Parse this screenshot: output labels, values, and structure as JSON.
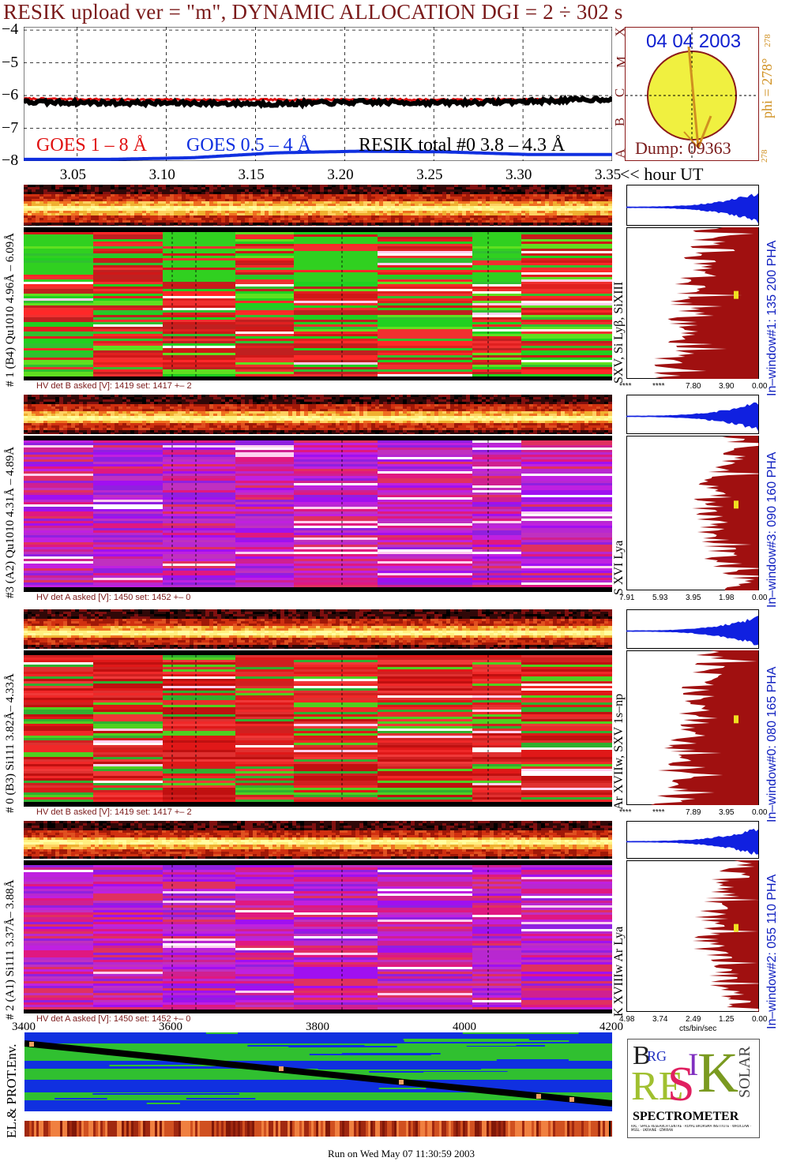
{
  "title": "RESIK upload ver = \"m\", DYNAMIC ALLOCATION  DGI =   2 ÷ 302 s",
  "colors": {
    "title": "#7a1a1a",
    "goes_long": "#e01010",
    "goes_short": "#1030e0",
    "resik_total": "#000000",
    "pha_blue": "#1020e0",
    "pha_red": "#a01010",
    "sun": "#f0f040",
    "sun_outline": "#8b1a1a",
    "date": "#1020d0",
    "phi": "#d09020",
    "window_label": "#1020c0"
  },
  "chart_data": [
    {
      "type": "line",
      "name": "lightcurves",
      "x": [
        3.02,
        3.05,
        3.1,
        3.15,
        3.2,
        3.25,
        3.3,
        3.35
      ],
      "xlabel": "<< hour UT",
      "xticks": [
        "3.05",
        "3.10",
        "3.15",
        "3.20",
        "3.25",
        "3.30",
        "3.35"
      ],
      "xlim": [
        3.02,
        3.35
      ],
      "ylim": [
        -8.0,
        -3.9
      ],
      "yticks": [
        "−4",
        "−5",
        "−6",
        "−7",
        "−8"
      ],
      "right_letters": [
        "A",
        "B",
        "C",
        "M",
        "X"
      ],
      "grid": true,
      "series": [
        {
          "name": "GOES 1 – 8 Å",
          "color": "#e01010",
          "values": [
            -6.1,
            -6.12,
            -6.13,
            -6.13,
            -6.12,
            -6.13,
            -6.12,
            -6.12
          ]
        },
        {
          "name": "GOES 0.5 – 4 Å",
          "color": "#1030e0",
          "values": [
            -7.95,
            -7.95,
            -7.9,
            -7.75,
            -7.7,
            -7.72,
            -7.8,
            -7.8
          ]
        },
        {
          "name": "RESIK total #0  3.8 – 4.3 Å",
          "color": "#000000",
          "values": [
            -6.2,
            -6.22,
            -6.23,
            -6.25,
            -6.2,
            -6.22,
            -6.18,
            -6.1
          ]
        }
      ]
    },
    {
      "type": "line",
      "name": "env-timeline",
      "xticks": [
        "3400",
        "3600",
        "3800",
        "4000",
        "4200"
      ],
      "xlim": [
        3400,
        4200
      ],
      "ylabel": "EL.& PROT.Env."
    }
  ],
  "sun_panel": {
    "date": "04 04 2003",
    "phi_label": "phi = 278°",
    "phi_small": "278",
    "phi_bottom": "278",
    "dump": "Dump: 09363"
  },
  "panels": [
    {
      "left_label": "# 1 (B4) Qu1010 4.96Å – 6.09Å",
      "line_label": "SXV, Si Lyβ, SiXIII",
      "window_label": "In–window#1:  135 200 PHA",
      "hv": "HV det B asked [V]:  1419 set:  1417 +–    2",
      "pha_ticks": [
        "****",
        "****",
        "7.80",
        "3.90",
        "0.00"
      ],
      "scheme": "green"
    },
    {
      "left_label": "#3 (A2) Qu1010  4.31Å – 4.89Å",
      "line_label": "S XVI Lya",
      "window_label": "In–window#3:  090 160 PHA",
      "hv": "HV det A asked [V]:  1450 set:  1452 +–    0",
      "pha_ticks": [
        "7.91",
        "5.93",
        "3.95",
        "1.98",
        "0.00"
      ],
      "scheme": "purple"
    },
    {
      "left_label": "# 0 (B3) Si111  3.82Å– 4.33Å",
      "line_label": "Ar XVIIw,  SXV 1s–np",
      "window_label": "In–window#0:  080 165 PHA",
      "hv": "HV det B asked [V]:  1419 set:  1417 +–    2",
      "pha_ticks": [
        "****",
        "****",
        "7.89",
        "3.95",
        "0.00"
      ],
      "scheme": "red"
    },
    {
      "left_label": "# 2 (A1) Si111  3.37Å– 3.88Å",
      "line_label": "K XVIIIw  Ar Lya",
      "window_label": "In–window#2:  055 110 PHA",
      "hv": "HV det A asked [V]:  1450 set:  1452 +–    0",
      "pha_ticks": [
        "4.98",
        "3.74",
        "2.49",
        "1.25",
        "0.00"
      ],
      "pha_unit": "cts/bin/sec",
      "scheme": "purple"
    }
  ],
  "logo": {
    "letters": [
      "B",
      "RG",
      "RE",
      "S",
      "I",
      "K",
      "SOLAR"
    ],
    "caption": "SPECTROMETER",
    "small_print": "RAL · SPACE RESEARCH CENTRE · ROYAL BRORSMA INSTITUTE · WROCLAW · MSSL · UKRAINE · IZMIRAN"
  },
  "footer": "Run on Wed May 07 11:30:59 2003"
}
